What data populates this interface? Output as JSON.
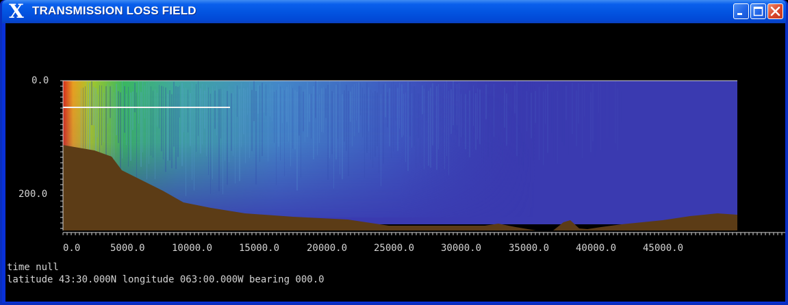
{
  "window": {
    "title": "TRANSMISSION LOSS FIELD",
    "logo_icon": "x-window-logo-icon",
    "buttons": [
      "minimize-icon",
      "maximize-icon",
      "close-icon"
    ]
  },
  "plot": {
    "y_ticks": [
      "0.0",
      "200.0"
    ],
    "x_ticks": [
      "0.0",
      "5000.0",
      "10000.0",
      "15000.0",
      "20000.0",
      "25000.0",
      "30000.0",
      "35000.0",
      "40000.0",
      "45000.0"
    ],
    "colors": {
      "seafloor": "#5c3c16",
      "water_background": "#3a3ab0",
      "axis": "#d4d4d4"
    }
  },
  "status": {
    "time_line": "time null",
    "position_line": "latitude 43:30.000N  longitude 063:00.000W  bearing 000.0"
  }
}
